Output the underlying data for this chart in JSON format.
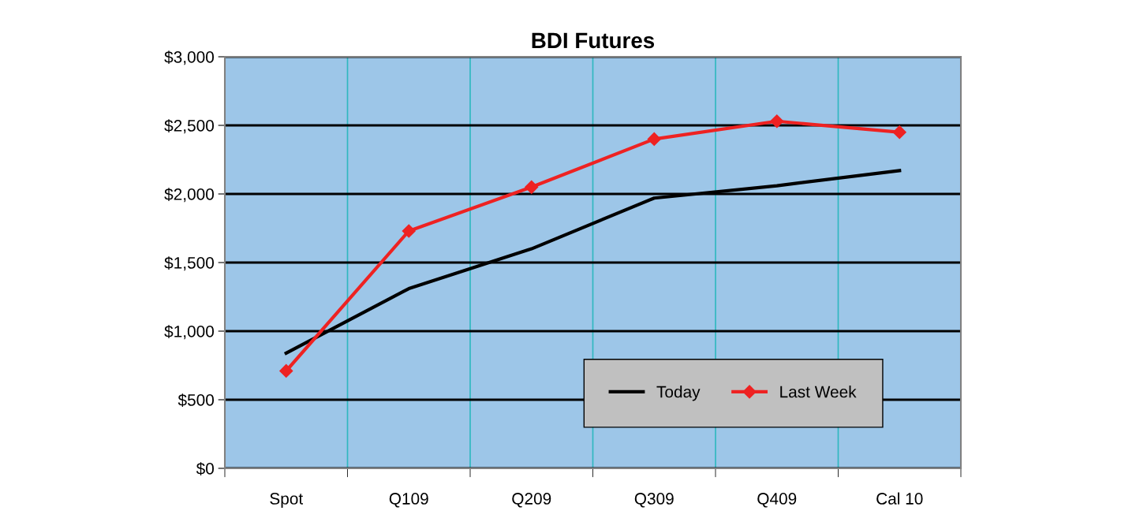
{
  "chart_data": {
    "type": "line",
    "title": "BDI Futures",
    "categories": [
      "Spot",
      "Q109",
      "Q209",
      "Q309",
      "Q409",
      "Cal 10"
    ],
    "series": [
      {
        "name": "Today",
        "color": "#000000",
        "values": [
          840,
          1310,
          1600,
          1970,
          2060,
          2170
        ],
        "marker": "none"
      },
      {
        "name": "Last Week",
        "color": "#ee2222",
        "values": [
          710,
          1730,
          2050,
          2400,
          2530,
          2450
        ],
        "marker": "diamond"
      }
    ],
    "ylim": [
      0,
      3000
    ],
    "yticks": [
      {
        "value": 0,
        "label": "$0"
      },
      {
        "value": 500,
        "label": "$500"
      },
      {
        "value": 1000,
        "label": "$1,000"
      },
      {
        "value": 1500,
        "label": "$1,500"
      },
      {
        "value": 2000,
        "label": "$2,000"
      },
      {
        "value": 2500,
        "label": "$2,500"
      },
      {
        "value": 3000,
        "label": "$3,000"
      }
    ],
    "grid": true,
    "legend": "bottom right",
    "line_style": "solid"
  }
}
